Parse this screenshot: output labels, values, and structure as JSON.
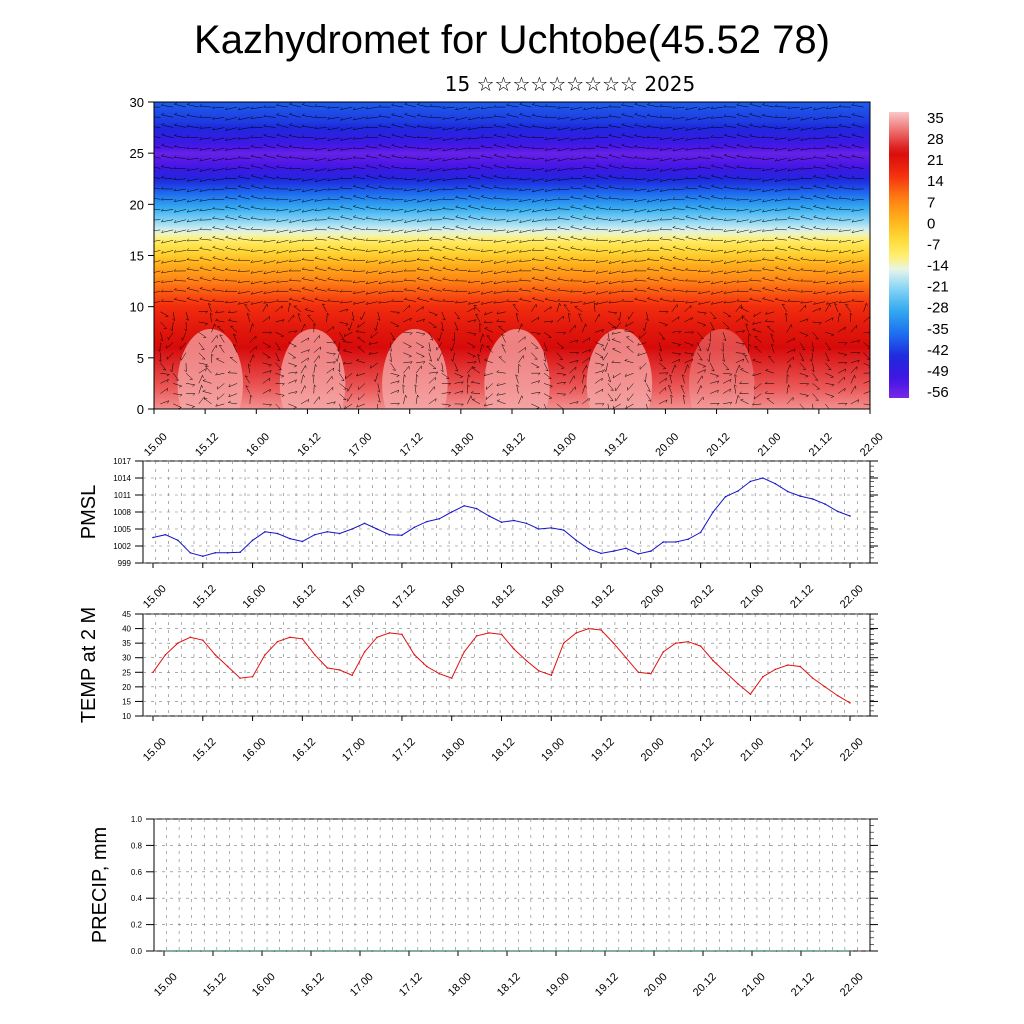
{
  "header": {
    "title": "Kazhydromet for Uchtobe(45.52 78)",
    "subtitle": "15 ☆☆☆☆☆☆☆☆☆ 2025"
  },
  "colors": {
    "pmsl_line": "#1414c8",
    "temp_line": "#e01010",
    "precip_line": "#105a3c",
    "quiver": "#000000"
  },
  "chart_data": [
    {
      "type": "heatmap",
      "title": "",
      "xlabel": "",
      "ylabel": "",
      "x_tick_labels": [
        "15.00",
        "15.12",
        "16.00",
        "16.12",
        "17.00",
        "17.12",
        "18.00",
        "18.12",
        "19.00",
        "19.12",
        "20.00",
        "20.12",
        "21.00",
        "21.12",
        "22.00"
      ],
      "y_ticks": [
        0,
        5,
        10,
        15,
        20,
        25,
        30
      ],
      "ylim": [
        0,
        30
      ],
      "colorbar_labels": [
        "35",
        "28",
        "21",
        "14",
        "7",
        "0",
        "-7",
        "-14",
        "-21",
        "-28",
        "-35",
        "-42",
        "-49",
        "-56"
      ],
      "colorbar_range": [
        -60,
        38
      ],
      "temperature_profile": {
        "levels": [
          0,
          2,
          4,
          6,
          8,
          10,
          12,
          14,
          16,
          18,
          20,
          22,
          24,
          25,
          26,
          28,
          30
        ],
        "values": [
          34,
          30,
          27,
          24,
          21,
          17,
          10,
          2,
          -8,
          -20,
          -32,
          -44,
          -55,
          -58,
          -52,
          -44,
          -40
        ]
      },
      "quiver": true
    },
    {
      "type": "line",
      "ylabel": "PMSL",
      "ylim": [
        999,
        1017
      ],
      "y_ticks": [
        999,
        1002,
        1005,
        1008,
        1011,
        1014,
        1017
      ],
      "x_tick_labels": [
        "15.00",
        "15.12",
        "16.00",
        "16.12",
        "17.00",
        "17.12",
        "18.00",
        "18.12",
        "19.00",
        "19.12",
        "20.00",
        "20.12",
        "21.00",
        "21.12",
        "22.00"
      ],
      "grid": true,
      "series": [
        {
          "values": [
            1003.5,
            1004.0,
            1003.0,
            1000.8,
            1000.2,
            1000.8,
            1000.8,
            1000.9,
            1003.0,
            1004.5,
            1004.2,
            1003.3,
            1002.8,
            1004.0,
            1004.5,
            1004.2,
            1005.0,
            1006.0,
            1005.0,
            1004.0,
            1003.9,
            1005.3,
            1006.3,
            1006.8,
            1008.0,
            1009.1,
            1008.6,
            1007.3,
            1006.2,
            1006.5,
            1006.0,
            1005.0,
            1005.2,
            1004.8,
            1003.0,
            1001.5,
            1000.7,
            1001.1,
            1001.6,
            1000.6,
            1001.1,
            1002.7,
            1002.7,
            1003.2,
            1004.4,
            1008.0,
            1010.7,
            1011.7,
            1013.4,
            1014.0,
            1013.0,
            1011.6,
            1010.8,
            1010.3,
            1009.4,
            1008.1,
            1007.3
          ]
        }
      ]
    },
    {
      "type": "line",
      "ylabel": "TEMP at 2 M",
      "ylim": [
        10,
        45
      ],
      "y_ticks": [
        10,
        15,
        20,
        25,
        30,
        35,
        40,
        45
      ],
      "x_tick_labels": [
        "15.00",
        "15.12",
        "16.00",
        "16.12",
        "17.00",
        "17.12",
        "18.00",
        "18.12",
        "19.00",
        "19.12",
        "20.00",
        "20.12",
        "21.00",
        "21.12",
        "22.00"
      ],
      "grid": true,
      "series": [
        {
          "values": [
            25,
            31,
            35,
            37,
            36,
            31,
            27,
            23,
            23.5,
            31,
            35.5,
            37,
            36.5,
            31,
            26.5,
            25.8,
            24,
            32,
            37,
            38.5,
            38,
            31,
            27,
            24.5,
            23,
            32,
            37.5,
            38.5,
            38,
            33,
            29,
            25.5,
            24,
            35,
            38.5,
            40,
            39.5,
            35,
            30,
            25,
            24.5,
            32,
            35,
            35.5,
            34,
            29,
            25,
            21,
            17.5,
            23.5,
            26,
            27.5,
            27,
            23,
            20,
            17,
            14.5
          ]
        }
      ]
    },
    {
      "type": "line",
      "ylabel": "PRECIP, mm",
      "ylim": [
        0,
        1
      ],
      "y_tick_labels": [
        "0.0",
        "0.2",
        "0.4",
        "0.6",
        "0.8",
        "1.0"
      ],
      "x_tick_labels": [
        "15.00",
        "15.12",
        "16.00",
        "16.12",
        "17.00",
        "17.12",
        "18.00",
        "18.12",
        "19.00",
        "19.12",
        "20.00",
        "20.12",
        "21.00",
        "21.12",
        "22.00"
      ],
      "grid": true,
      "series": [
        {
          "values": [
            0,
            0,
            0,
            0,
            0,
            0,
            0,
            0,
            0,
            0,
            0,
            0,
            0,
            0,
            0,
            0,
            0,
            0,
            0,
            0,
            0,
            0,
            0,
            0,
            0,
            0,
            0,
            0,
            0,
            0,
            0,
            0,
            0,
            0,
            0,
            0,
            0,
            0,
            0,
            0,
            0,
            0,
            0,
            0,
            0,
            0,
            0,
            0,
            0,
            0,
            0,
            0,
            0,
            0,
            0,
            0,
            0
          ]
        }
      ]
    }
  ]
}
